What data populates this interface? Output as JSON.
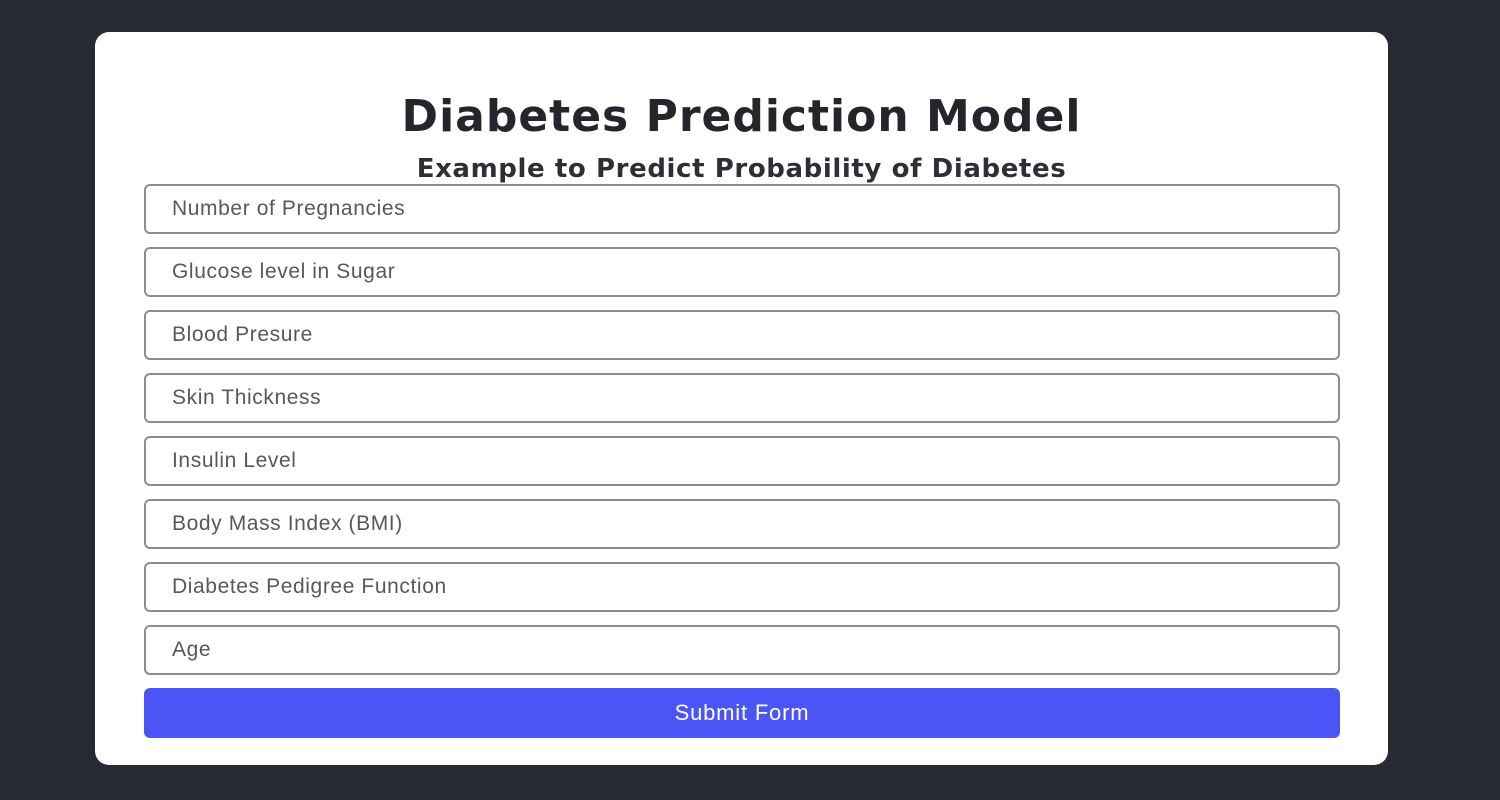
{
  "header": {
    "title": "Diabetes Prediction Model",
    "subtitle": "Example to Predict Probability of Diabetes"
  },
  "form": {
    "fields": [
      {
        "placeholder": "Number of Pregnancies",
        "value": ""
      },
      {
        "placeholder": "Glucose level in Sugar",
        "value": ""
      },
      {
        "placeholder": "Blood Presure",
        "value": ""
      },
      {
        "placeholder": "Skin Thickness",
        "value": ""
      },
      {
        "placeholder": "Insulin Level",
        "value": ""
      },
      {
        "placeholder": "Body Mass Index (BMI)",
        "value": ""
      },
      {
        "placeholder": "Diabetes Pedigree Function",
        "value": ""
      },
      {
        "placeholder": "Age",
        "value": ""
      }
    ],
    "submit_label": "Submit Form"
  },
  "colors": {
    "page_background": "#272a33",
    "card_background": "#ffffff",
    "button_accent": "#4b55f5"
  }
}
